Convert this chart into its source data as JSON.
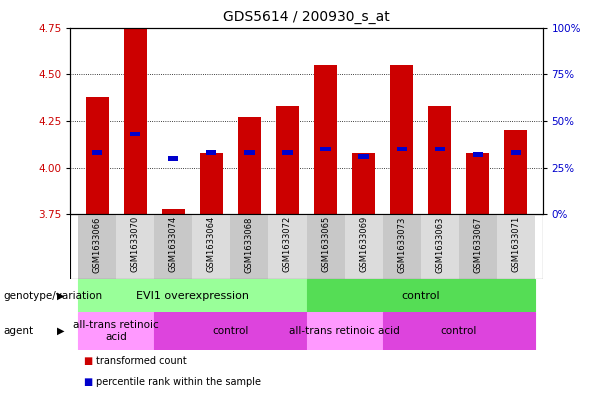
{
  "title": "GDS5614 / 200930_s_at",
  "samples": [
    "GSM1633066",
    "GSM1633070",
    "GSM1633074",
    "GSM1633064",
    "GSM1633068",
    "GSM1633072",
    "GSM1633065",
    "GSM1633069",
    "GSM1633073",
    "GSM1633063",
    "GSM1633067",
    "GSM1633071"
  ],
  "red_values": [
    4.38,
    4.75,
    3.78,
    4.08,
    4.27,
    4.33,
    4.55,
    4.08,
    4.55,
    4.33,
    4.08,
    4.2
  ],
  "blue_values": [
    4.08,
    4.18,
    4.05,
    4.08,
    4.08,
    4.08,
    4.1,
    4.06,
    4.1,
    4.1,
    4.07,
    4.08
  ],
  "ylim_left": [
    3.75,
    4.75
  ],
  "ylim_right": [
    0,
    100
  ],
  "yticks_left": [
    3.75,
    4.0,
    4.25,
    4.5,
    4.75
  ],
  "yticks_right": [
    0,
    25,
    50,
    75,
    100
  ],
  "ytick_labels_right": [
    "0%",
    "25%",
    "50%",
    "75%",
    "100%"
  ],
  "bar_bottom": 3.75,
  "bar_width": 0.6,
  "red_color": "#CC0000",
  "blue_color": "#0000CC",
  "blue_bar_height": 0.025,
  "genotype_groups": [
    {
      "label": "EVI1 overexpression",
      "start": 0,
      "end": 6,
      "color": "#99FF99"
    },
    {
      "label": "control",
      "start": 6,
      "end": 12,
      "color": "#55DD55"
    }
  ],
  "agent_groups": [
    {
      "label": "all-trans retinoic\nacid",
      "start": 0,
      "end": 2,
      "color": "#FF99FF"
    },
    {
      "label": "control",
      "start": 2,
      "end": 6,
      "color": "#DD44DD"
    },
    {
      "label": "all-trans retinoic acid",
      "start": 6,
      "end": 8,
      "color": "#FF99FF"
    },
    {
      "label": "control",
      "start": 8,
      "end": 12,
      "color": "#DD44DD"
    }
  ],
  "legend_red": "transformed count",
  "legend_blue": "percentile rank within the sample",
  "row1_label": "genotype/variation",
  "row2_label": "agent",
  "tick_color_left": "#CC0000",
  "tick_color_right": "#0000CC",
  "title_fontsize": 10,
  "axis_fontsize": 7.5,
  "sample_fontsize": 6,
  "group_fontsize": 8,
  "legend_fontsize": 7
}
